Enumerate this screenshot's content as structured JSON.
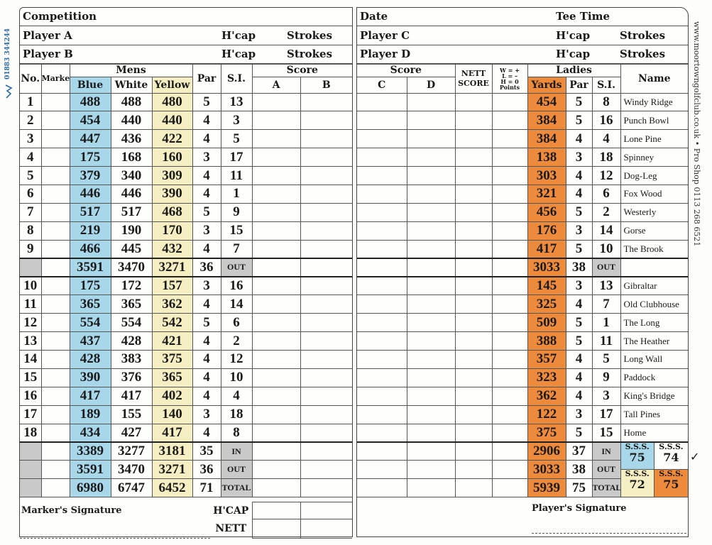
{
  "left_header": {
    "competition": "Competition",
    "player_a": "Player A",
    "player_b": "Player B",
    "hcap": "H'cap",
    "strokes": "Strokes"
  },
  "right_header": {
    "date": "Date",
    "tee_time": "Tee Time",
    "player_c": "Player C",
    "player_d": "Player D",
    "hcap": "H'cap",
    "strokes": "Strokes"
  },
  "columns": {
    "no": "No.",
    "marker": "Marker",
    "mens": "Mens",
    "blue": "Blue",
    "white": "White",
    "yellow": "Yellow",
    "par": "Par",
    "si": "S.I.",
    "score": "Score",
    "a": "A",
    "b": "B",
    "c": "C",
    "d": "D",
    "nett_score_1": "NETT",
    "nett_score_2": "SCORE",
    "wlh_1": "W = +",
    "wlh_2": "L = –",
    "wlh_3": "H = 0",
    "wlh_4": "Points",
    "ladies": "Ladies",
    "yards": "Yards",
    "name": "Name"
  },
  "holes_front": [
    {
      "no": "1",
      "blue": "488",
      "white": "488",
      "yellow": "480",
      "par": "5",
      "si": "13",
      "lyards": "454",
      "lpar": "5",
      "lsi": "8",
      "name": "Windy Ridge"
    },
    {
      "no": "2",
      "blue": "454",
      "white": "440",
      "yellow": "440",
      "par": "4",
      "si": "3",
      "lyards": "384",
      "lpar": "5",
      "lsi": "16",
      "name": "Punch Bowl"
    },
    {
      "no": "3",
      "blue": "447",
      "white": "436",
      "yellow": "422",
      "par": "4",
      "si": "5",
      "lyards": "384",
      "lpar": "4",
      "lsi": "4",
      "name": "Lone Pine"
    },
    {
      "no": "4",
      "blue": "175",
      "white": "168",
      "yellow": "160",
      "par": "3",
      "si": "17",
      "lyards": "138",
      "lpar": "3",
      "lsi": "18",
      "name": "Spinney"
    },
    {
      "no": "5",
      "blue": "379",
      "white": "340",
      "yellow": "309",
      "par": "4",
      "si": "11",
      "lyards": "303",
      "lpar": "4",
      "lsi": "12",
      "name": "Dog-Leg"
    },
    {
      "no": "6",
      "blue": "446",
      "white": "446",
      "yellow": "390",
      "par": "4",
      "si": "1",
      "lyards": "321",
      "lpar": "4",
      "lsi": "6",
      "name": "Fox Wood"
    },
    {
      "no": "7",
      "blue": "517",
      "white": "517",
      "yellow": "468",
      "par": "5",
      "si": "9",
      "lyards": "456",
      "lpar": "5",
      "lsi": "2",
      "name": "Westerly"
    },
    {
      "no": "8",
      "blue": "219",
      "white": "190",
      "yellow": "170",
      "par": "3",
      "si": "15",
      "lyards": "176",
      "lpar": "3",
      "lsi": "14",
      "name": "Gorse"
    },
    {
      "no": "9",
      "blue": "466",
      "white": "445",
      "yellow": "432",
      "par": "4",
      "si": "7",
      "lyards": "417",
      "lpar": "5",
      "lsi": "10",
      "name": "The Brook"
    }
  ],
  "out_row": {
    "blue": "3591",
    "white": "3470",
    "yellow": "3271",
    "par": "36",
    "label": "OUT",
    "lyards": "3033",
    "lpar": "38"
  },
  "holes_back": [
    {
      "no": "10",
      "blue": "175",
      "white": "172",
      "yellow": "157",
      "par": "3",
      "si": "16",
      "lyards": "145",
      "lpar": "3",
      "lsi": "13",
      "name": "Gibraltar"
    },
    {
      "no": "11",
      "blue": "365",
      "white": "365",
      "yellow": "362",
      "par": "4",
      "si": "14",
      "lyards": "325",
      "lpar": "4",
      "lsi": "7",
      "name": "Old Clubhouse"
    },
    {
      "no": "12",
      "blue": "554",
      "white": "554",
      "yellow": "542",
      "par": "5",
      "si": "6",
      "lyards": "509",
      "lpar": "5",
      "lsi": "1",
      "name": "The Long"
    },
    {
      "no": "13",
      "blue": "437",
      "white": "428",
      "yellow": "421",
      "par": "4",
      "si": "2",
      "lyards": "388",
      "lpar": "5",
      "lsi": "11",
      "name": "The Heather"
    },
    {
      "no": "14",
      "blue": "428",
      "white": "383",
      "yellow": "375",
      "par": "4",
      "si": "12",
      "lyards": "357",
      "lpar": "4",
      "lsi": "5",
      "name": "Long Wall"
    },
    {
      "no": "15",
      "blue": "390",
      "white": "376",
      "yellow": "365",
      "par": "4",
      "si": "10",
      "lyards": "323",
      "lpar": "4",
      "lsi": "9",
      "name": "Paddock"
    },
    {
      "no": "16",
      "blue": "417",
      "white": "417",
      "yellow": "402",
      "par": "4",
      "si": "4",
      "lyards": "362",
      "lpar": "4",
      "lsi": "3",
      "name": "King's Bridge"
    },
    {
      "no": "17",
      "blue": "189",
      "white": "155",
      "yellow": "140",
      "par": "3",
      "si": "18",
      "lyards": "122",
      "lpar": "3",
      "lsi": "17",
      "name": "Tall Pines"
    },
    {
      "no": "18",
      "blue": "434",
      "white": "427",
      "yellow": "417",
      "par": "4",
      "si": "8",
      "lyards": "375",
      "lpar": "5",
      "lsi": "15",
      "name": "Home"
    }
  ],
  "totals": [
    {
      "blue": "3389",
      "white": "3277",
      "yellow": "3181",
      "par": "35",
      "label": "IN",
      "lyards": "2906",
      "lpar": "37"
    },
    {
      "blue": "3591",
      "white": "3470",
      "yellow": "3271",
      "par": "36",
      "label": "OUT",
      "lyards": "3033",
      "lpar": "38"
    },
    {
      "blue": "6980",
      "white": "6747",
      "yellow": "6452",
      "par": "71",
      "label": "TOTAL",
      "lyards": "5939",
      "lpar": "75"
    }
  ],
  "sss": {
    "label": "S.S.S.",
    "blue": "75",
    "white": "74",
    "yellow": "72",
    "orange": "75",
    "check": "✓"
  },
  "footer": {
    "marker_signature": "Marker's Signature",
    "hcap": "H'CAP",
    "nett": "NETT",
    "player_signature": "Player's Signature"
  },
  "sidebar": {
    "phone": "01883 344244",
    "website": "www.moortowngolfclub.co.uk  •  Pro Shop 0113 268 6521"
  },
  "colors": {
    "blue": "#a9d7ea",
    "yellow": "#f5eec2",
    "orange": "#ee8a3c",
    "grey": "#c9c9c9"
  }
}
